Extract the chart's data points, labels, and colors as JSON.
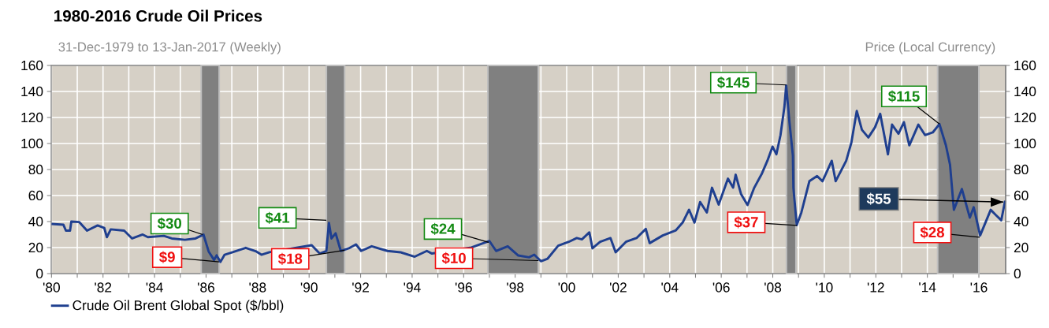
{
  "chart_data": {
    "type": "line",
    "title": "1980-2016 Crude Oil Prices",
    "subtitle": "31-Dec-1979 to 13-Jan-2017 (Weekly)",
    "y2label": "Price (Local Currency)",
    "xlim": [
      1979.99,
      2017.04
    ],
    "xticks": [
      {
        "value": 1980,
        "label": "'80"
      },
      {
        "value": 1981,
        "label": null
      },
      {
        "value": 1982,
        "label": "'82"
      },
      {
        "value": 1983,
        "label": null
      },
      {
        "value": 1984,
        "label": "'84"
      },
      {
        "value": 1985,
        "label": null
      },
      {
        "value": 1986,
        "label": "'86"
      },
      {
        "value": 1987,
        "label": null
      },
      {
        "value": 1988,
        "label": "'88"
      },
      {
        "value": 1989,
        "label": null
      },
      {
        "value": 1990,
        "label": "'90"
      },
      {
        "value": 1991,
        "label": null
      },
      {
        "value": 1992,
        "label": "'92"
      },
      {
        "value": 1993,
        "label": null
      },
      {
        "value": 1994,
        "label": "'94"
      },
      {
        "value": 1995,
        "label": null
      },
      {
        "value": 1996,
        "label": "'96"
      },
      {
        "value": 1997,
        "label": null
      },
      {
        "value": 1998,
        "label": "'98"
      },
      {
        "value": 1999,
        "label": null
      },
      {
        "value": 2000,
        "label": "'00"
      },
      {
        "value": 2001,
        "label": null
      },
      {
        "value": 2002,
        "label": "'02"
      },
      {
        "value": 2003,
        "label": null
      },
      {
        "value": 2004,
        "label": "'04"
      },
      {
        "value": 2005,
        "label": null
      },
      {
        "value": 2006,
        "label": "'06"
      },
      {
        "value": 2007,
        "label": null
      },
      {
        "value": 2008,
        "label": "'08"
      },
      {
        "value": 2009,
        "label": null
      },
      {
        "value": 2010,
        "label": "'10"
      },
      {
        "value": 2011,
        "label": null
      },
      {
        "value": 2012,
        "label": "'12"
      },
      {
        "value": 2013,
        "label": null
      },
      {
        "value": 2014,
        "label": "'14"
      },
      {
        "value": 2015,
        "label": null
      },
      {
        "value": 2016,
        "label": "'16"
      }
    ],
    "ylim": [
      0,
      160
    ],
    "yticks": [
      0,
      20,
      40,
      60,
      80,
      100,
      120,
      140,
      160
    ],
    "y2lim": [
      0,
      160
    ],
    "y2ticks": [
      0,
      20,
      40,
      60,
      80,
      100,
      120,
      140,
      160
    ],
    "grid": true,
    "legend": "bottom",
    "bands": [
      {
        "axis": "x",
        "from": 1985.81,
        "to": 1986.51,
        "color": "#808080"
      },
      {
        "axis": "x",
        "from": 1990.67,
        "to": 1991.38,
        "color": "#808080"
      },
      {
        "axis": "x",
        "from": 1996.94,
        "to": 1998.9,
        "color": "#808080"
      },
      {
        "axis": "x",
        "from": 2008.53,
        "to": 2008.9,
        "color": "#808080"
      },
      {
        "axis": "x",
        "from": 2014.4,
        "to": 2016.0,
        "color": "#808080"
      }
    ],
    "annotations": [
      {
        "text": "$30",
        "x": 1985.87,
        "y": 30
      },
      {
        "text": "$9",
        "x": 1986.51,
        "y": 9
      },
      {
        "text": "$41",
        "x": 1990.67,
        "y": 41
      },
      {
        "text": "$18",
        "x": 1991.38,
        "y": 18
      },
      {
        "text": "$24",
        "x": 1996.97,
        "y": 24
      },
      {
        "text": "$10",
        "x": 1998.9,
        "y": 10
      },
      {
        "text": "$145",
        "x": 2008.52,
        "y": 145
      },
      {
        "text": "$37",
        "x": 2008.93,
        "y": 37
      },
      {
        "text": "$115",
        "x": 2014.47,
        "y": 115
      },
      {
        "text": "$28",
        "x": 2016.03,
        "y": 28
      },
      {
        "text": "$55",
        "x": 2016.95,
        "y": 55
      }
    ],
    "series": [
      {
        "name": "Crude Oil Brent Global Spot ($/bbl)",
        "color": "#1f3f8f",
        "x": [
          1980.0,
          1980.46,
          1980.56,
          1980.72,
          1980.77,
          1981.08,
          1981.38,
          1981.79,
          1982.05,
          1982.15,
          1982.3,
          1982.82,
          1983.13,
          1983.54,
          1983.74,
          1984.36,
          1984.67,
          1985.18,
          1985.59,
          1985.9,
          1986.1,
          1986.31,
          1986.41,
          1986.56,
          1986.72,
          1987.03,
          1987.54,
          1987.95,
          1988.15,
          1988.46,
          1988.67,
          1989.2,
          1989.7,
          1990.1,
          1990.41,
          1990.67,
          1990.77,
          1990.87,
          1991.03,
          1991.23,
          1991.54,
          1991.82,
          1992.02,
          1992.43,
          1993.04,
          1993.55,
          1994.1,
          1994.57,
          1994.77,
          1995.3,
          1995.9,
          1996.3,
          1996.7,
          1997.0,
          1997.26,
          1997.71,
          1998.12,
          1998.54,
          1998.74,
          1999.0,
          1999.26,
          1999.67,
          2000.08,
          2000.39,
          2000.59,
          2000.88,
          2001.0,
          2001.3,
          2001.7,
          2001.9,
          2002.3,
          2002.71,
          2003.07,
          2003.22,
          2003.73,
          2004.24,
          2004.5,
          2004.75,
          2004.96,
          2005.18,
          2005.44,
          2005.64,
          2005.9,
          2006.26,
          2006.46,
          2006.56,
          2006.77,
          2007.02,
          2007.28,
          2007.58,
          2007.79,
          2007.99,
          2008.14,
          2008.3,
          2008.45,
          2008.52,
          2008.65,
          2008.78,
          2008.8,
          2008.93,
          2009.11,
          2009.42,
          2009.72,
          2009.93,
          2010.29,
          2010.44,
          2010.85,
          2011.05,
          2011.26,
          2011.46,
          2011.71,
          2011.97,
          2012.17,
          2012.47,
          2012.63,
          2012.88,
          2013.09,
          2013.3,
          2013.65,
          2013.91,
          2014.21,
          2014.47,
          2014.72,
          2014.88,
          2015.03,
          2015.34,
          2015.65,
          2015.8,
          2016.05,
          2016.46,
          2016.66,
          2016.87,
          2017.02
        ],
        "values": [
          38.2,
          37.6,
          33,
          33,
          40,
          39.6,
          33,
          37,
          35,
          28,
          34,
          33,
          27,
          30,
          28,
          29,
          27,
          26,
          27,
          30,
          17,
          10.5,
          14,
          9,
          14.5,
          16.4,
          19.8,
          17,
          14.5,
          16.4,
          null,
          null,
          null,
          21.8,
          15.4,
          17.4,
          39,
          27,
          31,
          17.4,
          19.4,
          22.4,
          17.4,
          21,
          17.4,
          16.4,
          13,
          17.4,
          15.4,
          null,
          null,
          20,
          23,
          25,
          17.4,
          21,
          13.9,
          12.5,
          14.5,
          9.5,
          11.5,
          21.4,
          24.4,
          27.3,
          26.3,
          31.7,
          19.4,
          24.4,
          27.3,
          16.4,
          24.4,
          27.3,
          34.3,
          23.4,
          29.3,
          33.3,
          39.2,
          49.1,
          39.2,
          55,
          47,
          66,
          53,
          73,
          66,
          76,
          61,
          52.7,
          66,
          77,
          86.7,
          97.6,
          91.7,
          106.5,
          128,
          144.6,
          116,
          90.7,
          66,
          37.2,
          47,
          71,
          75,
          71,
          86.7,
          71,
          86.7,
          100.6,
          125,
          110.5,
          104.6,
          112.5,
          122.8,
          91.7,
          114.5,
          107.5,
          116.4,
          98.6,
          114.5,
          106.5,
          108.5,
          114.9,
          98.6,
          83.8,
          49,
          65,
          43,
          51,
          29.3,
          49,
          45,
          41,
          56
        ]
      }
    ]
  }
}
